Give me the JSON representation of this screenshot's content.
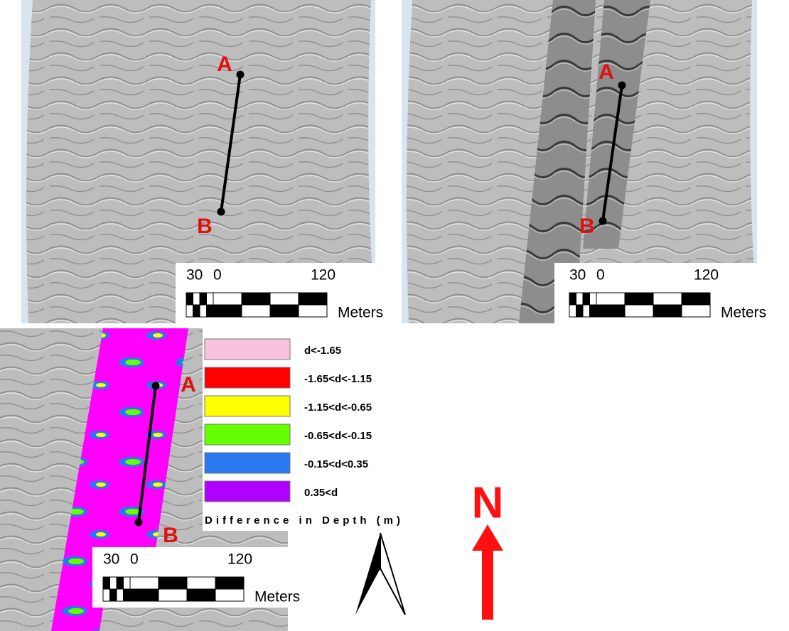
{
  "panels": [
    {
      "point_labels": [
        "A",
        "B"
      ],
      "scale_bar": {
        "ticks": [
          "30",
          "0",
          "120"
        ],
        "unit": "Meters"
      }
    },
    {
      "point_labels": [
        "A",
        "B"
      ],
      "scale_bar": {
        "ticks": [
          "30",
          "0",
          "120"
        ],
        "unit": "Meters"
      }
    },
    {
      "point_labels": [
        "A",
        "B"
      ],
      "scale_bar": {
        "ticks": [
          "30",
          "0",
          "120"
        ],
        "unit": "Meters"
      }
    }
  ],
  "legend": {
    "title": "Difference in Depth (m)",
    "items": [
      {
        "label": "d<-1.65",
        "color": "#f9c3de"
      },
      {
        "label": "-1.65<d<-1.15",
        "color": "#ff0000"
      },
      {
        "label": "-1.15<d<-0.65",
        "color": "#ffff00"
      },
      {
        "label": "-0.65<d<-0.15",
        "color": "#66ff00"
      },
      {
        "label": "-0.15<d<0.35",
        "color": "#2a78f0"
      },
      {
        "label": "0.35<d",
        "color": "#b000ff"
      }
    ]
  },
  "north_label": "N"
}
